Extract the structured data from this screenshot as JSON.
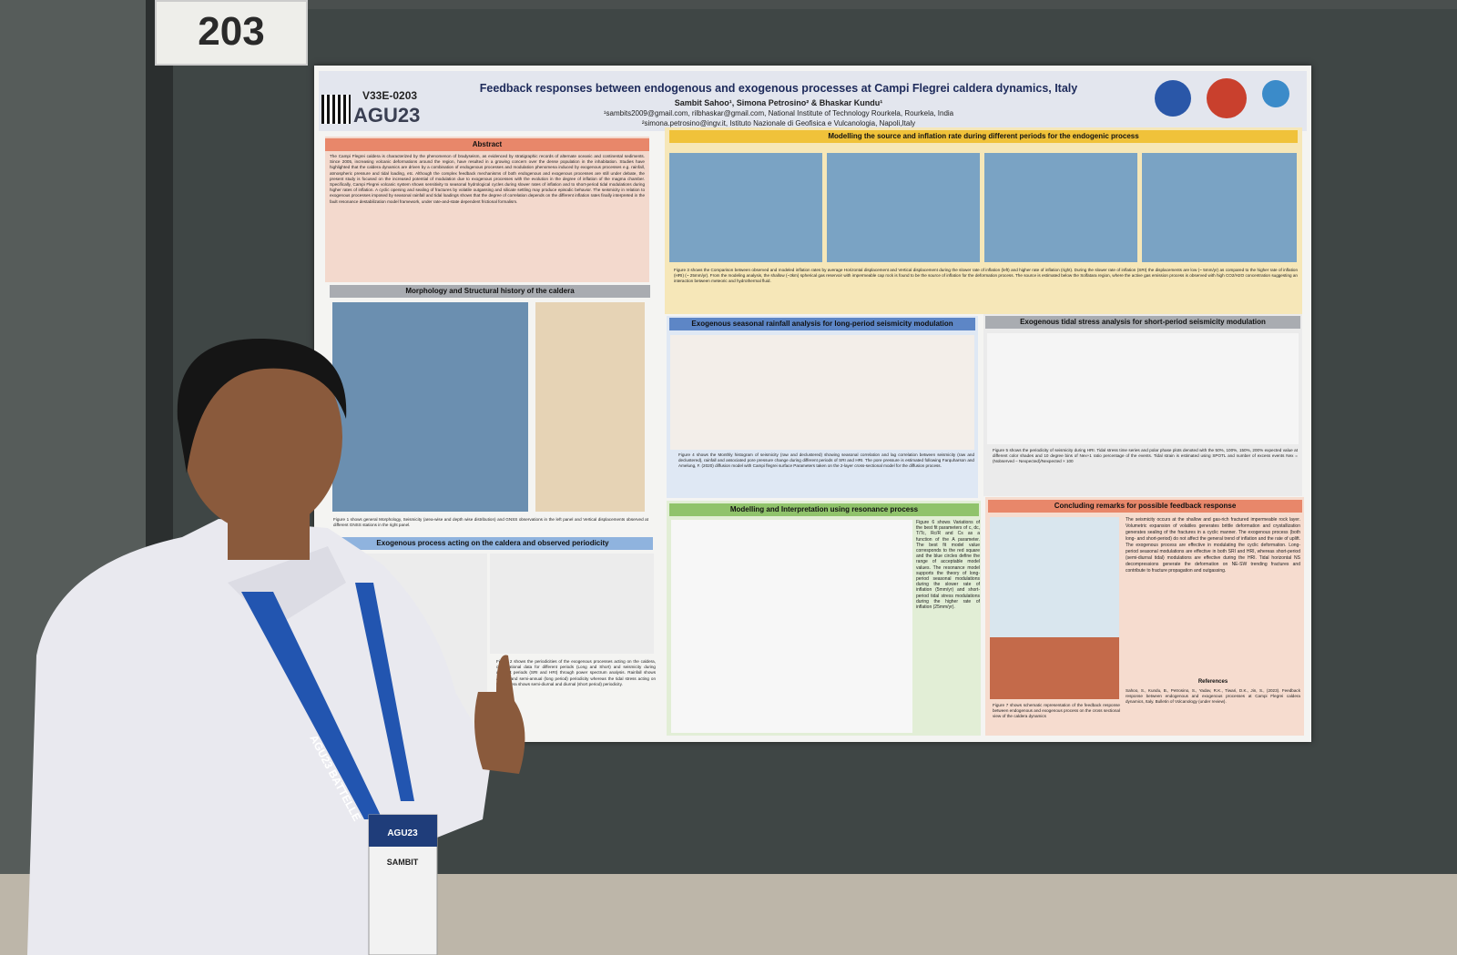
{
  "booth_number": "203",
  "poster": {
    "id": "V33E-0203",
    "logo": "AGU23",
    "title": "Feedback responses between endogenous and exogenous processes at Campi Flegrei caldera dynamics, Italy",
    "authors": "Sambit Sahoo¹, Simona Petrosino² & Bhaskar Kundu¹",
    "affiliation_1": "¹sambits2009@gmail.com, rilbhaskar@gmail.com, National Institute of Technology Rourkela, Rourkela, India",
    "affiliation_2": "²simona.petrosino@ingv.it, Istituto Nazionale di Geofisica e Vulcanologia, Napoli,Italy",
    "abstract": {
      "heading": "Abstract",
      "text": "The Campi Flegrei caldera is characterized by the phenomenon of bradyseism, as evidenced by stratigraphic records of alternate oceanic and continental sediments. Since 2005, increasing volcanic deformations around the region, have resulted in a growing concern over the dense population in the inhabitation. Studies have highlighted that the caldera dynamics are driven by a combination of endogenous processes and modulation phenomena induced by exogenous processes e.g. rainfall, atmospheric pressure and tidal loading, etc. Although the complex feedback mechanisms of both endogenous and exogenous processes are still under debate, the present study is focused on the increased potential of modulation due to exogenous processes with the evolution in the degree of inflation of the magma chamber. Specifically, Campi Flegrei volcanic system shows sensitivity to seasonal hydrological cycles during slower rates of inflation and to short-period tidal modulations during higher rates of inflation. A cyclic opening and sealing of fractures by volatile outgassing and silicate settling may produce episodic behavior. The seismicity in relation to exogenous processes imposed by seasonal rainfall and tidal loadings shows that the degree of correlation depends on the different inflation rates finally interpreted in the fault resonance destabilization model framework, under rate-and-state dependent frictional formalism."
    },
    "morphology": {
      "heading": "Morphology and Structural history of the caldera",
      "caption": "Figure 1 shows general Morphology, Seismicity (area-wise and depth wise distribution) and GNSS observations in the left panel and Vertical displacements observed at different GNSS stations in the right panel."
    },
    "periodicity": {
      "heading": "Exogenous process acting on the caldera and observed periodicity",
      "caption": "Figure 2 shows the periodicities of the exogenous processes acting on the caldera, observational data for different periods (Long and Short) and seismicity during different periods (SRI and HRI) through power spectrum analysis. Rainfall shows annual and semi-annual (long period) periodicity whereas the tidal stress acting on the caldera shows semi-diurnal and diurnal (short period) periodicity."
    },
    "modelling": {
      "heading": "Modelling the source and inflation rate during different periods for the endogenic process",
      "caption": "Figure 3 shows the Comparison between observed and modeled inflation rates by average Horizontal displacement and Vertical displacement during the slower rate of inflation (left) and higher rate of inflation (right). During the slower rate of inflation (SRI) the displacements are low (~ 5mm/yr) as compared to the higher rate of inflation (HRI) (~ 25mm/yr). From the modeling analysis, the shallow (~3km) spherical gas reservoir with impermeable cap rock is found to be the source of inflation for the deformation process. The source is estimated below the Solfatara region, where the active gas emission process is observed with high CO2/H2O concentration suggesting an interaction between meteoric and hydrothermal fluid."
    },
    "rainfall": {
      "heading": "Exogenous seasonal rainfall analysis for long-period seismicity modulation",
      "caption": "Figure 4 shows the Monthly histogram of seismicity (raw and declustered) showing seasonal correlation and lag correlation between seismicity (raw and declustered), rainfall and associated pore pressure change during different periods of SRI and HRI. The pore pressure is estimated following Farquharson and Amelung, F. (2020) diffusion model with Campi flegrei surface Parameters taken on the 2-layer cross-sectional model for the diffusion process."
    },
    "tidal": {
      "heading": "Exogenous tidal stress analysis for short-period seismicity modulation",
      "caption": "Figure 5 shows the periodicity of seismicity during HRI. Tidal stress time series and polar phase plots denoted with the 50%, 100%, 150%, 200% expected value at different color shades and 10 degree bins of Nex+1 ratio percentage of the events. Tidal strain is estimated using SPOTL and number of excess events Nex = (Nobserved − Nexpected)/Nexpected × 100"
    },
    "resonance": {
      "heading": "Modelling and Interpretation using resonance process",
      "caption": "Figure 6 shows Variations of the best fit parameters of c, dc, T/Tc, Rc/R and Cs as a function of the A parameter. The best fit model value corresponds to the red square and the blue circles define the range of acceptable model values. The resonance model supports the theory of long-period seasonal modulations during the slower rate of inflation (5mm/yr) and short-period tidal stress modulations during the higher rate of inflation (25mm/yr)."
    },
    "conclusions": {
      "heading": "Concluding remarks for possible feedback response",
      "text": "The seismicity occurs at the shallow and gas-rich fractured impermeable rock layer. Volumetric expansion of volatiles generates brittle deformation and crystallization generates sealing of the fractures in a cyclic manner. The exogenous process (both long- and short-period) do not affect the general trend of inflation and the rate of uplift. The exogenous process are effective in modulating the cyclic deformation. Long-period seasonal modulations are effective in both SRI and HRI, whereas short-period (semi-diurnal tidal) modulations are effective during the HRI. Tidal horizontal NS decompressions generate the deformation on NE-SW trending fractures and contribute to fracture propagation and outgassing.",
      "caption": "Figure 7 shows schematic representation of the feedback response between endogenous and exogenous process on the cross sectional view of the caldera dynamics"
    },
    "references": {
      "heading": "References",
      "text": "Sahoo, S., Kundu, B., Petrosino, S., Yadav, R.K., Tiwari, D.K., Jin, S., (2023). Feedback response between endogenous and exogenous processes at Campi Flegrei caldera dynamics, Italy. Bulletin of Volcanology (under review)."
    }
  },
  "lanyard": "AGU23 BATTELLE",
  "badge": {
    "event": "AGU23",
    "name": "SAMBIT"
  }
}
